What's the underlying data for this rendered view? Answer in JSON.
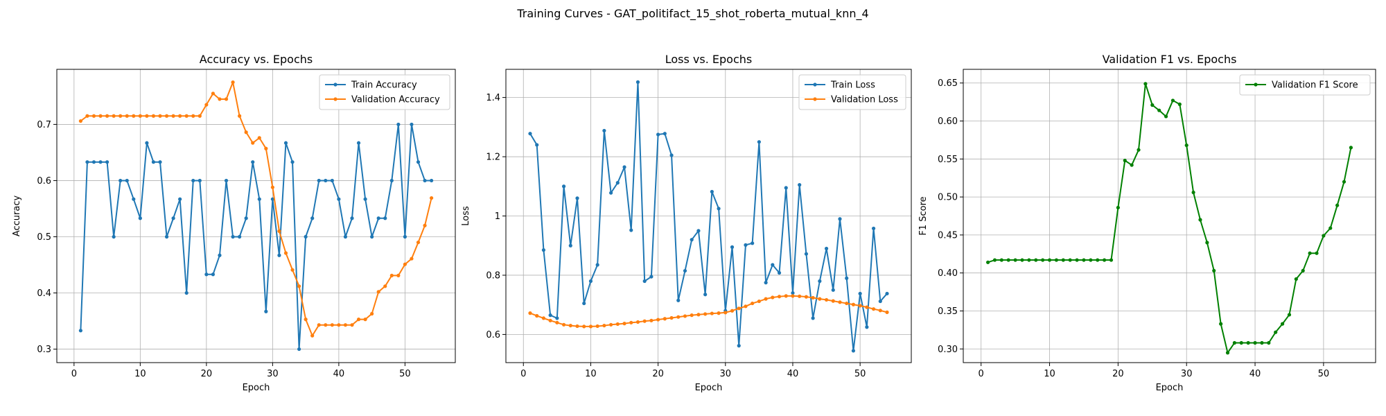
{
  "figure": {
    "suptitle": "Training Curves - GAT_politifact_15_shot_roberta_mutual_knn_4"
  },
  "colors": {
    "blue": "#1f77b4",
    "orange": "#ff7f0e",
    "green": "#008000",
    "grid": "#b0b0b0"
  },
  "chart_data": [
    {
      "type": "line",
      "title": "Accuracy vs. Epochs",
      "xlabel": "Epoch",
      "ylabel": "Accuracy",
      "xlim": [
        -2.6,
        57.6
      ],
      "ylim": [
        0.276,
        0.798
      ],
      "xticks": [
        0,
        10,
        20,
        30,
        40,
        50
      ],
      "yticks": [
        0.3,
        0.4,
        0.5,
        0.6,
        0.7
      ],
      "grid": true,
      "legend": "upper right",
      "x": [
        1,
        2,
        3,
        4,
        5,
        6,
        7,
        8,
        9,
        10,
        11,
        12,
        13,
        14,
        15,
        16,
        17,
        18,
        19,
        20,
        21,
        22,
        23,
        24,
        25,
        26,
        27,
        28,
        29,
        30,
        31,
        32,
        33,
        34,
        35,
        36,
        37,
        38,
        39,
        40,
        41,
        42,
        43,
        44,
        45,
        46,
        47,
        48,
        49,
        50,
        51,
        52,
        53,
        54
      ],
      "series": [
        {
          "name": "Train Accuracy",
          "color": "#1f77b4",
          "values": [
            0.333,
            0.633,
            0.633,
            0.633,
            0.633,
            0.5,
            0.6,
            0.6,
            0.567,
            0.533,
            0.667,
            0.633,
            0.633,
            0.5,
            0.533,
            0.567,
            0.4,
            0.6,
            0.6,
            0.433,
            0.433,
            0.467,
            0.6,
            0.5,
            0.5,
            0.533,
            0.633,
            0.567,
            0.367,
            0.567,
            0.467,
            0.667,
            0.633,
            0.3,
            0.5,
            0.533,
            0.6,
            0.6,
            0.6,
            0.567,
            0.5,
            0.533,
            0.667,
            0.567,
            0.5,
            0.533,
            0.533,
            0.6,
            0.7,
            0.5,
            0.7,
            0.633,
            0.6,
            0.6
          ]
        },
        {
          "name": "Validation Accuracy",
          "color": "#ff7f0e",
          "values": [
            0.706,
            0.715,
            0.715,
            0.715,
            0.715,
            0.715,
            0.715,
            0.715,
            0.715,
            0.715,
            0.715,
            0.715,
            0.715,
            0.715,
            0.715,
            0.715,
            0.715,
            0.715,
            0.715,
            0.735,
            0.755,
            0.745,
            0.745,
            0.775,
            0.715,
            0.686,
            0.667,
            0.676,
            0.657,
            0.588,
            0.51,
            0.471,
            0.441,
            0.412,
            0.353,
            0.324,
            0.343,
            0.343,
            0.343,
            0.343,
            0.343,
            0.343,
            0.353,
            0.353,
            0.363,
            0.402,
            0.412,
            0.431,
            0.431,
            0.451,
            0.461,
            0.49,
            0.52,
            0.569
          ]
        }
      ]
    },
    {
      "type": "line",
      "title": "Loss vs. Epochs",
      "xlabel": "Epoch",
      "ylabel": "Loss",
      "xlim": [
        -2.6,
        57.6
      ],
      "ylim": [
        0.505,
        1.495
      ],
      "xticks": [
        0,
        10,
        20,
        30,
        40,
        50
      ],
      "yticks": [
        0.6,
        0.8,
        1.0,
        1.2,
        1.4
      ],
      "grid": true,
      "legend": "upper right",
      "x": [
        1,
        2,
        3,
        4,
        5,
        6,
        7,
        8,
        9,
        10,
        11,
        12,
        13,
        14,
        15,
        16,
        17,
        18,
        19,
        20,
        21,
        22,
        23,
        24,
        25,
        26,
        27,
        28,
        29,
        30,
        31,
        32,
        33,
        34,
        35,
        36,
        37,
        38,
        39,
        40,
        41,
        42,
        43,
        44,
        45,
        46,
        47,
        48,
        49,
        50,
        51,
        52,
        53,
        54
      ],
      "series": [
        {
          "name": "Train Loss",
          "color": "#1f77b4",
          "values": [
            1.278,
            1.24,
            0.885,
            0.665,
            0.655,
            1.1,
            0.9,
            1.06,
            0.705,
            0.78,
            0.835,
            1.288,
            1.078,
            1.112,
            1.165,
            0.952,
            1.452,
            0.78,
            0.795,
            1.275,
            1.278,
            1.205,
            0.715,
            0.815,
            0.92,
            0.95,
            0.735,
            1.082,
            1.025,
            0.68,
            0.895,
            0.562,
            0.902,
            0.908,
            1.25,
            0.775,
            0.835,
            0.808,
            1.095,
            0.74,
            1.105,
            0.872,
            0.655,
            0.78,
            0.89,
            0.75,
            0.99,
            0.79,
            0.545,
            0.738,
            0.625,
            0.958,
            0.712,
            0.738
          ]
        },
        {
          "name": "Validation Loss",
          "color": "#ff7f0e",
          "values": [
            0.672,
            0.663,
            0.655,
            0.647,
            0.64,
            0.633,
            0.63,
            0.628,
            0.627,
            0.627,
            0.628,
            0.63,
            0.633,
            0.635,
            0.637,
            0.64,
            0.642,
            0.645,
            0.647,
            0.65,
            0.653,
            0.656,
            0.659,
            0.662,
            0.665,
            0.667,
            0.669,
            0.671,
            0.672,
            0.674,
            0.68,
            0.688,
            0.695,
            0.705,
            0.712,
            0.72,
            0.725,
            0.728,
            0.73,
            0.73,
            0.729,
            0.727,
            0.724,
            0.72,
            0.717,
            0.713,
            0.709,
            0.705,
            0.701,
            0.697,
            0.692,
            0.686,
            0.681,
            0.675
          ]
        }
      ]
    },
    {
      "type": "line",
      "title": "Validation F1 vs. Epochs",
      "xlabel": "Epoch",
      "ylabel": "F1 Score",
      "xlim": [
        -2.6,
        57.6
      ],
      "ylim": [
        0.282,
        0.668
      ],
      "xticks": [
        0,
        10,
        20,
        30,
        40,
        50
      ],
      "yticks": [
        0.3,
        0.35,
        0.4,
        0.45,
        0.5,
        0.55,
        0.6,
        0.65
      ],
      "yticklabels": [
        "0.30",
        "0.35",
        "0.40",
        "0.45",
        "0.50",
        "0.55",
        "0.60",
        "0.65"
      ],
      "grid": true,
      "legend": "upper right",
      "x": [
        1,
        2,
        3,
        4,
        5,
        6,
        7,
        8,
        9,
        10,
        11,
        12,
        13,
        14,
        15,
        16,
        17,
        18,
        19,
        20,
        21,
        22,
        23,
        24,
        25,
        26,
        27,
        28,
        29,
        30,
        31,
        32,
        33,
        34,
        35,
        36,
        37,
        38,
        39,
        40,
        41,
        42,
        43,
        44,
        45,
        46,
        47,
        48,
        49,
        50,
        51,
        52,
        53,
        54
      ],
      "series": [
        {
          "name": "Validation F1 Score",
          "color": "#008000",
          "values": [
            0.414,
            0.417,
            0.417,
            0.417,
            0.417,
            0.417,
            0.417,
            0.417,
            0.417,
            0.417,
            0.417,
            0.417,
            0.417,
            0.417,
            0.417,
            0.417,
            0.417,
            0.417,
            0.417,
            0.486,
            0.548,
            0.542,
            0.562,
            0.649,
            0.621,
            0.614,
            0.606,
            0.627,
            0.622,
            0.568,
            0.506,
            0.47,
            0.44,
            0.403,
            0.333,
            0.295,
            0.308,
            0.308,
            0.308,
            0.308,
            0.308,
            0.308,
            0.322,
            0.333,
            0.345,
            0.392,
            0.403,
            0.426,
            0.426,
            0.449,
            0.459,
            0.489,
            0.52,
            0.565
          ]
        }
      ]
    }
  ]
}
